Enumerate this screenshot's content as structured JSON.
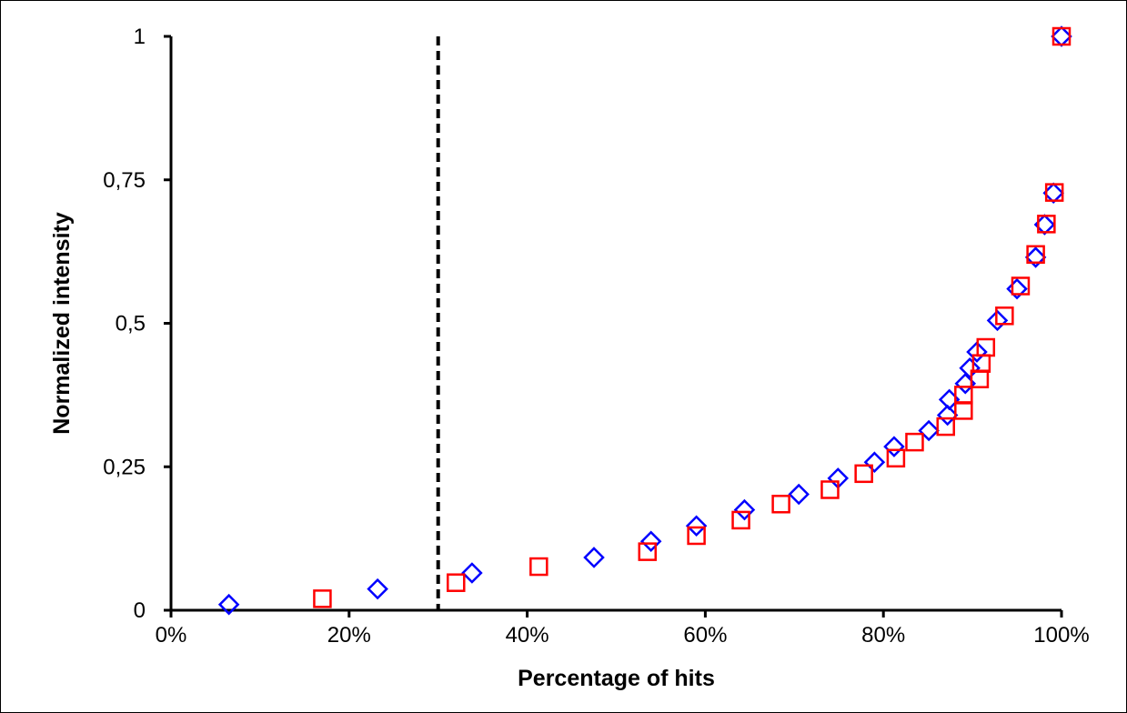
{
  "chart_data": {
    "type": "scatter",
    "xlabel": "Percentage of hits",
    "ylabel": "Normalized intensity",
    "xlim": [
      0,
      100
    ],
    "ylim": [
      0,
      1
    ],
    "x_ticks": [
      0,
      20,
      40,
      60,
      80,
      100
    ],
    "x_tick_labels": [
      "0%",
      "20%",
      "40%",
      "60%",
      "80%",
      "100%"
    ],
    "y_ticks": [
      0,
      0.25,
      0.5,
      0.75,
      1
    ],
    "y_tick_labels": [
      "0",
      "0,25",
      "0,5",
      "0,75",
      "1"
    ],
    "grid": false,
    "legend": "none",
    "threshold_line": {
      "x": 30,
      "style": "dashed",
      "color": "#000000"
    },
    "series": [
      {
        "marker": "diamond",
        "color": "#0000ff",
        "points": [
          [
            6.5,
            0.01
          ],
          [
            23.2,
            0.037
          ],
          [
            33.8,
            0.065
          ],
          [
            47.5,
            0.092
          ],
          [
            53.9,
            0.12
          ],
          [
            59.0,
            0.147
          ],
          [
            64.4,
            0.175
          ],
          [
            70.5,
            0.202
          ],
          [
            74.9,
            0.23
          ],
          [
            79.0,
            0.258
          ],
          [
            81.2,
            0.285
          ],
          [
            85.1,
            0.313
          ],
          [
            87.2,
            0.34
          ],
          [
            87.4,
            0.367
          ],
          [
            89.2,
            0.395
          ],
          [
            89.7,
            0.422
          ],
          [
            90.5,
            0.45
          ],
          [
            92.8,
            0.505
          ],
          [
            95.0,
            0.56
          ],
          [
            97.1,
            0.615
          ],
          [
            98.1,
            0.672
          ],
          [
            99.1,
            0.727
          ],
          [
            100.0,
            1.0
          ]
        ]
      },
      {
        "marker": "square",
        "color": "#ff0000",
        "points": [
          [
            17.0,
            0.02
          ],
          [
            32.0,
            0.048
          ],
          [
            41.3,
            0.076
          ],
          [
            53.5,
            0.102
          ],
          [
            59.0,
            0.13
          ],
          [
            64.0,
            0.157
          ],
          [
            68.5,
            0.185
          ],
          [
            74.0,
            0.21
          ],
          [
            77.8,
            0.238
          ],
          [
            81.4,
            0.265
          ],
          [
            83.5,
            0.293
          ],
          [
            87.0,
            0.32
          ],
          [
            89.0,
            0.348
          ],
          [
            89.0,
            0.375
          ],
          [
            90.8,
            0.403
          ],
          [
            91.0,
            0.43
          ],
          [
            91.5,
            0.458
          ],
          [
            93.6,
            0.513
          ],
          [
            95.4,
            0.565
          ],
          [
            97.1,
            0.62
          ],
          [
            98.3,
            0.673
          ],
          [
            99.2,
            0.728
          ],
          [
            100.0,
            1.0
          ]
        ]
      }
    ]
  }
}
